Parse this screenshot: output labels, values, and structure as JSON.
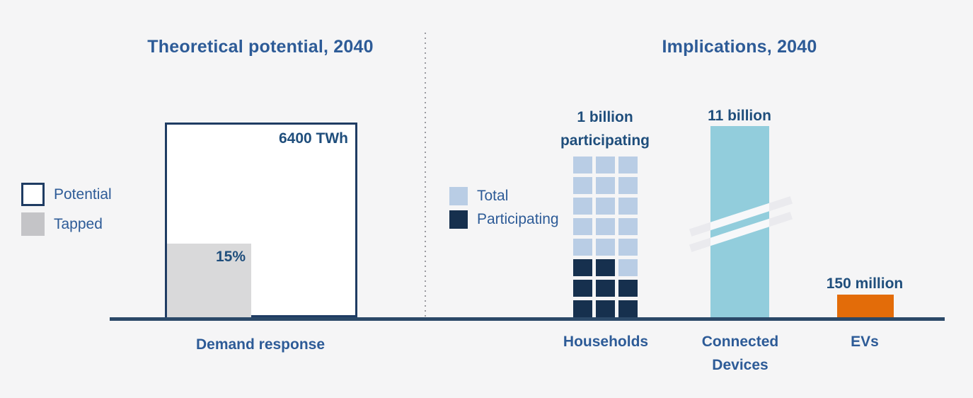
{
  "colors": {
    "background": "#f5f5f6",
    "text_blue": "#2d5b97",
    "value_blue": "#1f4e7c",
    "navy_participating": "#16304e",
    "border_navy": "#1f3c63",
    "axis": "#2b4968",
    "light_blue_total": "#b9cde5",
    "teal_connected": "#92cddc",
    "orange_evs": "#e36c09",
    "gray_tapped": "#d9d9da"
  },
  "left": {
    "title": "Theoretical potential, 2040",
    "legend": {
      "potential": "Potential",
      "tapped": "Tapped"
    },
    "potential_value": "6400 TWh",
    "tapped_value": "15%",
    "category": "Demand response"
  },
  "right": {
    "title": "Implications, 2040",
    "legend": {
      "total": "Total",
      "participating": "Participating"
    },
    "households": {
      "annotation_l1": "1 billion",
      "annotation_l2": "participating",
      "category": "Households"
    },
    "connected": {
      "annotation": "11 billion",
      "category_l1": "Connected",
      "category_l2": "Devices"
    },
    "evs": {
      "annotation": "150 million",
      "category": "EVs"
    }
  },
  "chart_data": [
    {
      "type": "bar",
      "panel": "left",
      "title": "Theoretical potential, 2040",
      "categories": [
        "Demand response"
      ],
      "series": [
        {
          "name": "Potential",
          "values": [
            6400
          ],
          "unit": "TWh",
          "data_label": "6400 TWh",
          "fill": "#ffffff",
          "outline": "#1f3c63"
        },
        {
          "name": "Tapped",
          "values": [
            960
          ],
          "unit": "TWh",
          "data_label": "15%",
          "note": "15% of potential",
          "fill": "#d9d9da"
        }
      ],
      "legend_position": "left",
      "axis": {
        "y_visible": false,
        "baseline": true
      }
    },
    {
      "type": "bar",
      "panel": "right",
      "title": "Implications, 2040",
      "categories": [
        "Households",
        "Connected Devices",
        "EVs"
      ],
      "legend": [
        "Total",
        "Participating"
      ],
      "legend_position": "left",
      "items": [
        {
          "category": "Households",
          "style": "pictogram-grid",
          "annotation": "1 billion participating",
          "total_squares": 24,
          "participating_squares": 8,
          "grid": {
            "cols": 3,
            "rows": 8,
            "pattern": [
              [
                0,
                0,
                0
              ],
              [
                0,
                0,
                0
              ],
              [
                0,
                0,
                0
              ],
              [
                0,
                0,
                0
              ],
              [
                0,
                0,
                0
              ],
              [
                1,
                1,
                0
              ],
              [
                1,
                1,
                1
              ],
              [
                1,
                1,
                1
              ]
            ]
          }
        },
        {
          "category": "Connected Devices",
          "style": "bar-with-axis-break",
          "annotation": "11 billion",
          "value": 11000000000,
          "fill": "#92cddc"
        },
        {
          "category": "EVs",
          "style": "bar",
          "annotation": "150 million",
          "value": 150000000,
          "fill": "#e36c09"
        }
      ],
      "axis": {
        "y_visible": false,
        "baseline": true
      }
    }
  ]
}
